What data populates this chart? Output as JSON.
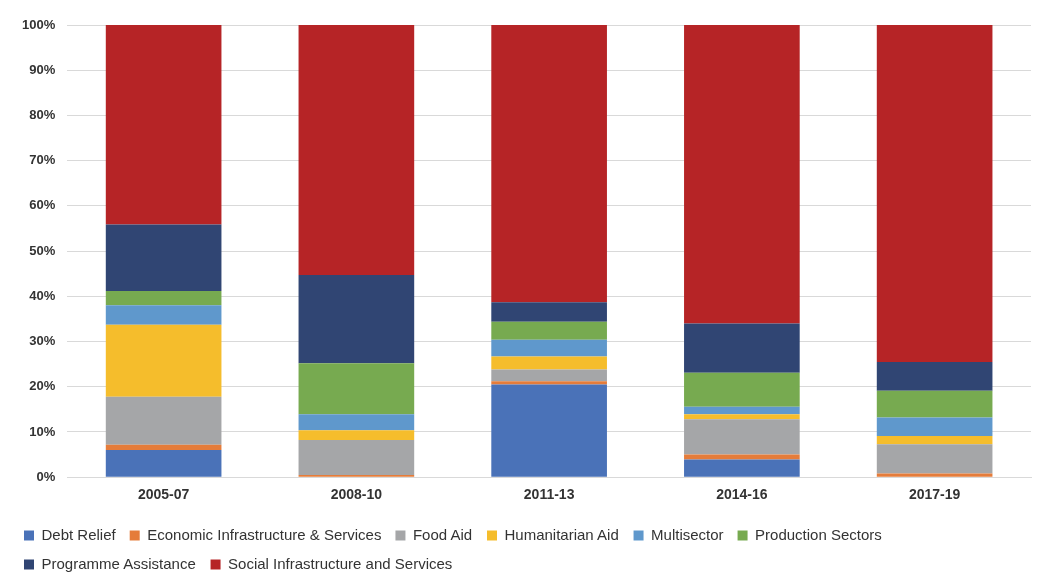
{
  "chart_data": {
    "type": "bar",
    "stacked": true,
    "categories": [
      "2005-07",
      "2008-10",
      "2011-13",
      "2014-16",
      "2017-19"
    ],
    "series": [
      {
        "name": "Debt Relief",
        "color": "#4a72b8",
        "values": [
          6.0,
          0,
          20.5,
          3.9,
          0
        ]
      },
      {
        "name": "Economic Infrastructure & Services",
        "color": "#e57c3a",
        "values": [
          1.2,
          0.5,
          0.7,
          1.1,
          0.8
        ]
      },
      {
        "name": "Food Aid",
        "color": "#a5a6a8",
        "values": [
          10.6,
          7.7,
          2.6,
          7.8,
          6.5
        ]
      },
      {
        "name": "Humanitarian Aid",
        "color": "#f5bd2c",
        "values": [
          15.9,
          2.2,
          2.9,
          1.1,
          1.8
        ]
      },
      {
        "name": "Multisector",
        "color": "#5f98cc",
        "values": [
          4.3,
          3.5,
          3.7,
          1.7,
          4.1
        ]
      },
      {
        "name": "Production Sectors",
        "color": "#77aa50",
        "values": [
          3.2,
          11.3,
          4.0,
          7.5,
          5.9
        ]
      },
      {
        "name": "Programme Assistance",
        "color": "#304573",
        "values": [
          14.7,
          19.5,
          4.3,
          10.9,
          6.4
        ]
      },
      {
        "name": "Social Infrastructure and Services",
        "color": "#b62426",
        "values": [
          44.1,
          55.3,
          61.3,
          66.0,
          74.5
        ]
      }
    ],
    "ylim": [
      0,
      100
    ],
    "yticks": [
      {
        "value": 0,
        "label": "0%"
      },
      {
        "value": 10,
        "label": "10%"
      },
      {
        "value": 20,
        "label": "20%"
      },
      {
        "value": 30,
        "label": "30%"
      },
      {
        "value": 40,
        "label": "40%"
      },
      {
        "value": 50,
        "label": "50%"
      },
      {
        "value": 60,
        "label": "60%"
      },
      {
        "value": 70,
        "label": "70%"
      },
      {
        "value": 80,
        "label": "80%"
      },
      {
        "value": 90,
        "label": "90%"
      },
      {
        "value": 100,
        "label": "100%"
      }
    ],
    "grid": "y",
    "legend": "bottom"
  }
}
